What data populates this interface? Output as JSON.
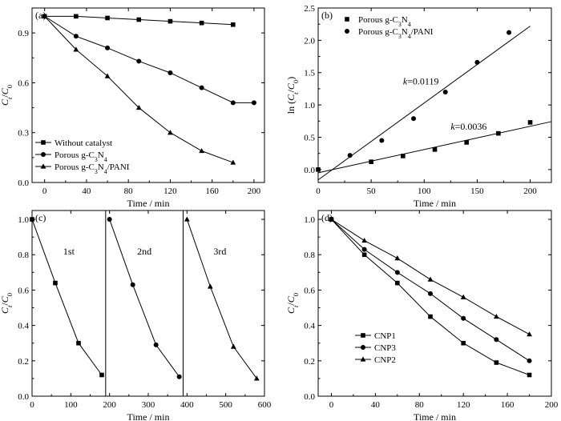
{
  "chart_data": [
    {
      "id": "a",
      "panel_label": "(a)",
      "type": "line",
      "xlabel": "Time / min",
      "ylabel": "Ct/C0",
      "xlim": [
        -12,
        210
      ],
      "ylim": [
        0,
        1.05
      ],
      "xticks": [
        0,
        40,
        80,
        120,
        160,
        200
      ],
      "yticks": [
        0.0,
        0.3,
        0.6,
        0.9
      ],
      "yticklabels": [
        "0.0",
        "0.3",
        "0.6",
        "0.9"
      ],
      "legend_position": "bottom-left",
      "series": [
        {
          "name": "Without catalyst",
          "marker": "square",
          "x": [
            0,
            30,
            60,
            90,
            120,
            150,
            180
          ],
          "y": [
            1.0,
            1.0,
            0.99,
            0.98,
            0.97,
            0.96,
            0.95
          ]
        },
        {
          "name": "Porous g-C3N4",
          "marker": "circle",
          "x": [
            0,
            30,
            60,
            90,
            120,
            150,
            180,
            200
          ],
          "y": [
            1.0,
            0.88,
            0.81,
            0.73,
            0.66,
            0.57,
            0.48,
            0.48
          ]
        },
        {
          "name": "Porous g-C3N4/PANI",
          "marker": "triangle",
          "x": [
            0,
            30,
            60,
            90,
            120,
            150,
            180
          ],
          "y": [
            1.0,
            0.8,
            0.64,
            0.45,
            0.3,
            0.19,
            0.12
          ]
        }
      ]
    },
    {
      "id": "b",
      "panel_label": "(b)",
      "type": "scatter",
      "xlabel": "Time / min",
      "ylabel": "ln (Ct/C0)",
      "xlim": [
        0,
        220
      ],
      "ylim": [
        -0.2,
        2.5
      ],
      "xticks": [
        0,
        50,
        100,
        150,
        200
      ],
      "yticks": [
        0.0,
        0.5,
        1.0,
        1.5,
        2.0,
        2.5
      ],
      "yticklabels": [
        "0.0",
        "0.5",
        "1.0",
        "1.5",
        "2.0",
        "2.5"
      ],
      "legend_position": "top-left",
      "series": [
        {
          "name": "Porous g-C3N4",
          "marker": "square",
          "x": [
            0,
            50,
            80,
            110,
            140,
            170,
            200
          ],
          "y": [
            0.0,
            0.12,
            0.21,
            0.31,
            0.42,
            0.56,
            0.73
          ],
          "fit": {
            "slope": 0.0036,
            "intercept": -0.05,
            "x0": 0,
            "x1": 220
          }
        },
        {
          "name": "Porous g-C3N4/PANI",
          "marker": "circle",
          "x": [
            30,
            60,
            90,
            120,
            150,
            180
          ],
          "y": [
            0.22,
            0.45,
            0.79,
            1.2,
            1.66,
            2.12
          ],
          "fit": {
            "slope": 0.0119,
            "intercept": -0.16,
            "x0": 0,
            "x1": 200
          }
        }
      ],
      "annotations": [
        {
          "k": "k",
          "value": "=0.0119",
          "at": [
            80,
            1.32
          ]
        },
        {
          "k": "k",
          "value": "=0.0036",
          "at": [
            125,
            0.62
          ]
        }
      ]
    },
    {
      "id": "c",
      "panel_label": "(c)",
      "type": "line",
      "xlabel": "Time / min",
      "ylabel": "Ct/C0",
      "xlim": [
        0,
        600
      ],
      "ylim": [
        0,
        1.05
      ],
      "xticks": [
        0,
        100,
        200,
        300,
        400,
        500,
        600
      ],
      "yticks": [
        0.0,
        0.2,
        0.4,
        0.6,
        0.8,
        1.0
      ],
      "yticklabels": [
        "0.0",
        "0.2",
        "0.4",
        "0.6",
        "0.8",
        "1.0"
      ],
      "cycle_dividers": [
        190,
        390
      ],
      "cycle_labels": [
        {
          "text": "1st",
          "at": [
            95,
            0.8
          ]
        },
        {
          "text": "2nd",
          "at": [
            290,
            0.8
          ]
        },
        {
          "text": "3rd",
          "at": [
            485,
            0.8
          ]
        }
      ],
      "series": [
        {
          "name": "1st",
          "marker": "square",
          "x": [
            0,
            60,
            120,
            180
          ],
          "y": [
            1.0,
            0.64,
            0.3,
            0.12
          ]
        },
        {
          "name": "2nd",
          "marker": "circle",
          "x": [
            200,
            260,
            320,
            380
          ],
          "y": [
            1.0,
            0.63,
            0.29,
            0.11
          ]
        },
        {
          "name": "3rd",
          "marker": "triangle",
          "x": [
            400,
            460,
            520,
            580
          ],
          "y": [
            1.0,
            0.62,
            0.28,
            0.1
          ]
        }
      ]
    },
    {
      "id": "d",
      "panel_label": "(d)",
      "type": "line",
      "xlabel": "Time / min",
      "ylabel": "Ct/C0",
      "xlim": [
        -12,
        200
      ],
      "ylim": [
        0,
        1.05
      ],
      "xticks": [
        0,
        40,
        80,
        120,
        160,
        200
      ],
      "yticks": [
        0.0,
        0.2,
        0.4,
        0.6,
        0.8,
        1.0
      ],
      "yticklabels": [
        "0.0",
        "0.2",
        "0.4",
        "0.6",
        "0.8",
        "1.0"
      ],
      "legend_position": "bottom-left",
      "series": [
        {
          "name": "CNP1",
          "marker": "square",
          "x": [
            0,
            30,
            60,
            90,
            120,
            150,
            180
          ],
          "y": [
            1.0,
            0.8,
            0.64,
            0.45,
            0.3,
            0.19,
            0.12
          ]
        },
        {
          "name": "CNP3",
          "marker": "circle",
          "x": [
            0,
            30,
            60,
            90,
            120,
            150,
            180
          ],
          "y": [
            1.0,
            0.83,
            0.7,
            0.58,
            0.44,
            0.32,
            0.2
          ]
        },
        {
          "name": "CNP2",
          "marker": "triangle",
          "x": [
            0,
            30,
            60,
            90,
            120,
            150,
            180
          ],
          "y": [
            1.0,
            0.88,
            0.78,
            0.66,
            0.56,
            0.45,
            0.35
          ]
        }
      ]
    }
  ]
}
